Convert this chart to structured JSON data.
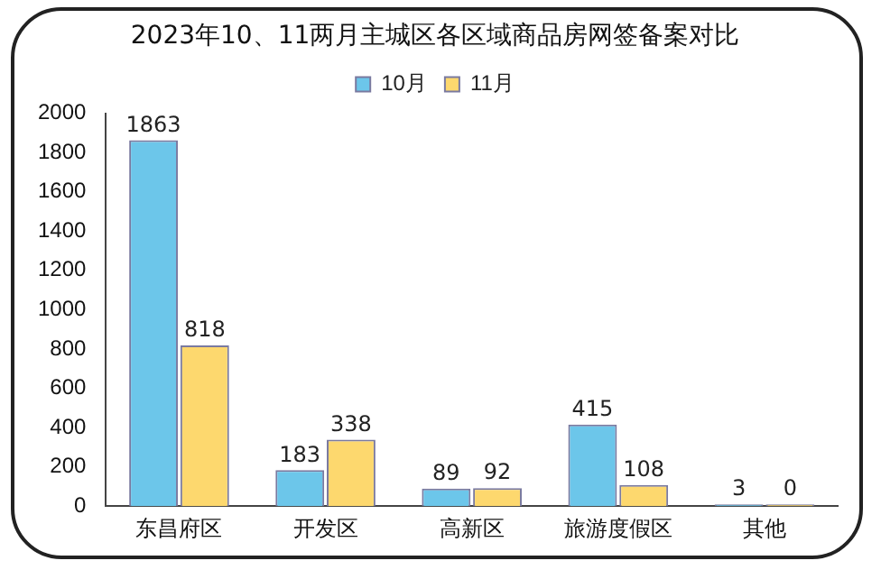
{
  "chart_data": {
    "type": "bar",
    "title": "2023年10、11两月主城区各区域商品房网签备案对比",
    "categories": [
      "东昌府区",
      "开发区",
      "高新区",
      "旅游度假区",
      "其他"
    ],
    "series": [
      {
        "name": "10月",
        "color": "#6cc6ea",
        "values": [
          1863,
          183,
          89,
          415,
          3
        ]
      },
      {
        "name": "11月",
        "color": "#fdd86e",
        "values": [
          818,
          338,
          92,
          108,
          0
        ]
      }
    ],
    "ylim": [
      0,
      2000
    ],
    "yticks": [
      0,
      200,
      400,
      600,
      800,
      1000,
      1200,
      1400,
      1600,
      1800,
      2000
    ],
    "grid": false,
    "legend": "top",
    "data_labels": true
  }
}
